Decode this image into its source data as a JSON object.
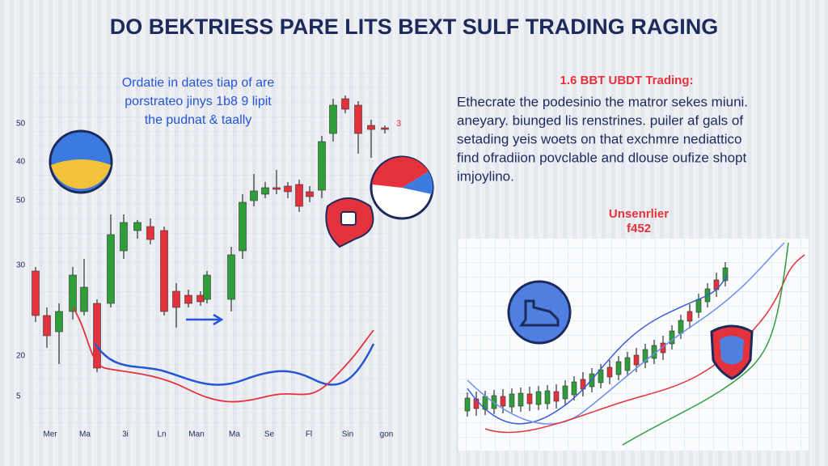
{
  "header": {
    "title": "DO BEKTRIESS PARE LITS BEXT SULF TRADING RAGING"
  },
  "left_chart": {
    "annotation": [
      "Ordatie in dates tiap of are",
      "porstrateo jinys 1b8 9 lipit",
      "the pudnat & taally"
    ],
    "y_labels": [
      "50",
      "40",
      "50",
      "30",
      "20",
      "5"
    ],
    "x_labels": [
      "Mer",
      "Ma",
      "3i",
      "Ln",
      "Man",
      "Ma",
      "Se",
      "Fl",
      "Sin",
      "gon"
    ],
    "marker": "3"
  },
  "right_text": {
    "heading": "1.6 BBT UBDT Trading:",
    "paragraph": [
      "Ethecrate the podesinio the matror sekes miuni.",
      "aneyary. biunged lis renstrines. puiler af gals of",
      "setading yeis woets on that exchmre nediattico",
      "find ofradiion povclable and dlouse oufize shopt",
      "imjoylino."
    ]
  },
  "right_chart": {
    "title": [
      "Unsenrlier",
      "f452"
    ]
  }
}
